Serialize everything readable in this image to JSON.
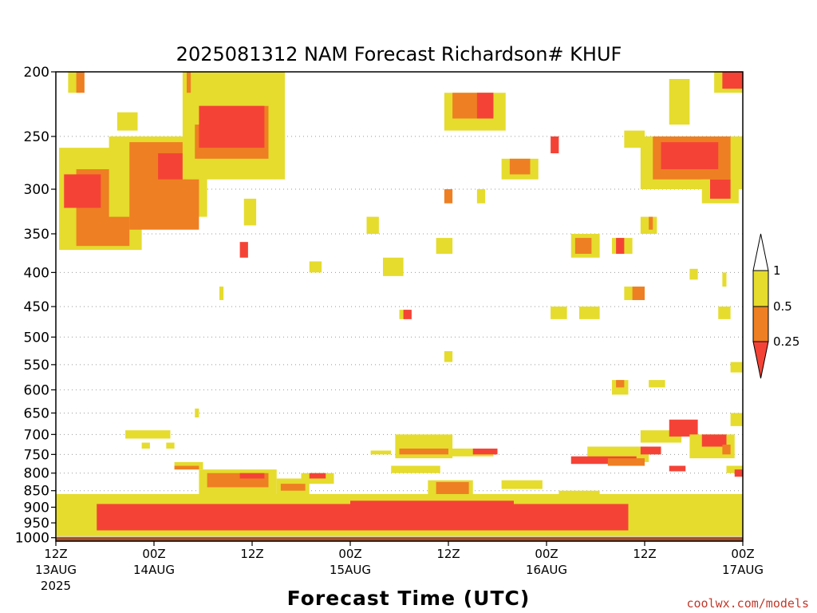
{
  "chart_data": {
    "type": "heatmap",
    "title": "2025081312 NAM Forecast Richardson# KHUF",
    "xlabel": "Forecast Time (UTC)",
    "ylabel": "",
    "y_scale": "log",
    "ylim": [
      1000,
      200
    ],
    "xlim": [
      0,
      84
    ],
    "x_unit": "forecast hours",
    "y_ticks": [
      200,
      250,
      300,
      350,
      400,
      450,
      500,
      550,
      600,
      650,
      700,
      750,
      800,
      850,
      900,
      950,
      1000
    ],
    "x_ticks": [
      {
        "hour": 0,
        "time": "12Z",
        "date": "13AUG",
        "year": "2025"
      },
      {
        "hour": 12,
        "time": "00Z",
        "date": "14AUG",
        "year": ""
      },
      {
        "hour": 24,
        "time": "12Z",
        "date": "",
        "year": ""
      },
      {
        "hour": 36,
        "time": "00Z",
        "date": "15AUG",
        "year": ""
      },
      {
        "hour": 48,
        "time": "12Z",
        "date": "",
        "year": ""
      },
      {
        "hour": 60,
        "time": "00Z",
        "date": "16AUG",
        "year": ""
      },
      {
        "hour": 72,
        "time": "12Z",
        "date": "",
        "year": ""
      },
      {
        "hour": 84,
        "time": "00Z",
        "date": "17AUG",
        "year": ""
      }
    ],
    "colorbar": {
      "levels": [
        "1",
        "0.5",
        "0.25"
      ],
      "colors": {
        "below_0.25": "#f44336",
        "0.25-0.5": "#ee7f22",
        "0.5-1": "#e5dc2e",
        "above_1": "#ffffff"
      }
    },
    "ground_color": "#a0522d",
    "grid": "dotted at pressure ticks",
    "regions": [
      {
        "level": "0.5-1",
        "x": [
          0.4,
          10.5
        ],
        "p": [
          260,
          370
        ]
      },
      {
        "level": "0.25-0.5",
        "x": [
          2.5,
          9.0
        ],
        "p": [
          280,
          365
        ]
      },
      {
        "level": "below_0.25",
        "x": [
          1.0,
          5.5
        ],
        "p": [
          285,
          320
        ]
      },
      {
        "level": "0.5-1",
        "x": [
          6.5,
          18.5
        ],
        "p": [
          250,
          330
        ]
      },
      {
        "level": "0.25-0.5",
        "x": [
          9.0,
          17.5
        ],
        "p": [
          255,
          345
        ]
      },
      {
        "level": "below_0.25",
        "x": [
          12.5,
          16.0
        ],
        "p": [
          265,
          290
        ]
      },
      {
        "level": "0.5-1",
        "x": [
          15.5,
          28.0
        ],
        "p": [
          200,
          290
        ]
      },
      {
        "level": "0.25-0.5",
        "x": [
          17.0,
          26.0
        ],
        "p": [
          225,
          270
        ]
      },
      {
        "level": "below_0.25",
        "x": [
          17.5,
          25.5
        ],
        "p": [
          225,
          260
        ]
      },
      {
        "level": "0.5-1",
        "x": [
          1.5,
          3.0
        ],
        "p": [
          200,
          215
        ]
      },
      {
        "level": "0.25-0.5",
        "x": [
          2.5,
          3.5
        ],
        "p": [
          200,
          215
        ]
      },
      {
        "level": "0.5-1",
        "x": [
          16.0,
          17.5
        ],
        "p": [
          205,
          240
        ]
      },
      {
        "level": "0.25-0.5",
        "x": [
          16.0,
          16.5
        ],
        "p": [
          200,
          215
        ]
      },
      {
        "level": "0.5-1",
        "x": [
          23.0,
          24.5
        ],
        "p": [
          310,
          340
        ]
      },
      {
        "level": "below_0.25",
        "x": [
          22.5,
          23.5
        ],
        "p": [
          360,
          380
        ]
      },
      {
        "level": "0.5-1",
        "x": [
          7.5,
          10.0
        ],
        "p": [
          230,
          245
        ]
      },
      {
        "level": "0.5-1",
        "x": [
          31.0,
          32.5
        ],
        "p": [
          385,
          400
        ]
      },
      {
        "level": "0.5-1",
        "x": [
          20.0,
          20.5
        ],
        "p": [
          420,
          440
        ]
      },
      {
        "level": "0.5-1",
        "x": [
          38.0,
          39.5
        ],
        "p": [
          330,
          350
        ]
      },
      {
        "level": "0.5-1",
        "x": [
          40.0,
          42.5
        ],
        "p": [
          380,
          405
        ]
      },
      {
        "level": "0.5-1",
        "x": [
          42.0,
          43.0
        ],
        "p": [
          455,
          470
        ]
      },
      {
        "level": "below_0.25",
        "x": [
          42.5,
          43.5
        ],
        "p": [
          455,
          470
        ]
      },
      {
        "level": "0.5-1",
        "x": [
          46.5,
          48.5
        ],
        "p": [
          355,
          375
        ]
      },
      {
        "level": "0.5-1",
        "x": [
          47.5,
          55.0
        ],
        "p": [
          215,
          245
        ]
      },
      {
        "level": "0.25-0.5",
        "x": [
          48.5,
          53.5
        ],
        "p": [
          215,
          235
        ]
      },
      {
        "level": "below_0.25",
        "x": [
          51.5,
          53.5
        ],
        "p": [
          215,
          235
        ]
      },
      {
        "level": "0.25-0.5",
        "x": [
          47.5,
          48.5
        ],
        "p": [
          300,
          315
        ]
      },
      {
        "level": "0.5-1",
        "x": [
          51.5,
          52.5
        ],
        "p": [
          300,
          315
        ]
      },
      {
        "level": "0.5-1",
        "x": [
          47.5,
          48.5
        ],
        "p": [
          525,
          545
        ]
      },
      {
        "level": "0.5-1",
        "x": [
          54.5,
          59.0
        ],
        "p": [
          270,
          290
        ]
      },
      {
        "level": "0.25-0.5",
        "x": [
          55.5,
          58.0
        ],
        "p": [
          270,
          285
        ]
      },
      {
        "level": "below_0.25",
        "x": [
          60.5,
          61.5
        ],
        "p": [
          250,
          265
        ]
      },
      {
        "level": "0.5-1",
        "x": [
          60.5,
          62.5
        ],
        "p": [
          450,
          470
        ]
      },
      {
        "level": "0.5-1",
        "x": [
          63.0,
          66.5
        ],
        "p": [
          350,
          380
        ]
      },
      {
        "level": "0.25-0.5",
        "x": [
          63.5,
          65.5
        ],
        "p": [
          355,
          375
        ]
      },
      {
        "level": "0.5-1",
        "x": [
          64.0,
          66.5
        ],
        "p": [
          450,
          470
        ]
      },
      {
        "level": "0.5-1",
        "x": [
          68.0,
          70.5
        ],
        "p": [
          355,
          375
        ]
      },
      {
        "level": "below_0.25",
        "x": [
          68.5,
          69.5
        ],
        "p": [
          355,
          375
        ]
      },
      {
        "level": "0.5-1",
        "x": [
          69.5,
          72.0
        ],
        "p": [
          420,
          440
        ]
      },
      {
        "level": "0.25-0.5",
        "x": [
          70.5,
          72.0
        ],
        "p": [
          420,
          440
        ]
      },
      {
        "level": "0.5-1",
        "x": [
          71.5,
          73.5
        ],
        "p": [
          330,
          350
        ]
      },
      {
        "level": "0.25-0.5",
        "x": [
          72.5,
          73.0
        ],
        "p": [
          330,
          345
        ]
      },
      {
        "level": "0.5-1",
        "x": [
          69.5,
          72.0
        ],
        "p": [
          245,
          260
        ]
      },
      {
        "level": "0.5-1",
        "x": [
          71.5,
          84.0
        ],
        "p": [
          250,
          300
        ]
      },
      {
        "level": "0.25-0.5",
        "x": [
          73.0,
          82.5
        ],
        "p": [
          250,
          290
        ]
      },
      {
        "level": "below_0.25",
        "x": [
          74.0,
          81.0
        ],
        "p": [
          255,
          280
        ]
      },
      {
        "level": "0.5-1",
        "x": [
          75.0,
          77.5
        ],
        "p": [
          205,
          240
        ]
      },
      {
        "level": "0.5-1",
        "x": [
          79.0,
          83.5
        ],
        "p": [
          290,
          315
        ]
      },
      {
        "level": "below_0.25",
        "x": [
          80.0,
          82.5
        ],
        "p": [
          290,
          310
        ]
      },
      {
        "level": "0.5-1",
        "x": [
          80.5,
          84.0
        ],
        "p": [
          200,
          215
        ]
      },
      {
        "level": "below_0.25",
        "x": [
          81.5,
          84.0
        ],
        "p": [
          200,
          212
        ]
      },
      {
        "level": "0.5-1",
        "x": [
          81.0,
          82.5
        ],
        "p": [
          450,
          470
        ]
      },
      {
        "level": "0.5-1",
        "x": [
          81.5,
          82.0
        ],
        "p": [
          400,
          420
        ]
      },
      {
        "level": "0.5-1",
        "x": [
          77.5,
          78.5
        ],
        "p": [
          395,
          410
        ]
      },
      {
        "level": "0.5-1",
        "x": [
          82.5,
          84.0
        ],
        "p": [
          545,
          565
        ]
      },
      {
        "level": "0.5-1",
        "x": [
          68.0,
          70.0
        ],
        "p": [
          580,
          610
        ]
      },
      {
        "level": "0.25-0.5",
        "x": [
          68.5,
          69.5
        ],
        "p": [
          580,
          595
        ]
      },
      {
        "level": "0.5-1",
        "x": [
          72.5,
          74.5
        ],
        "p": [
          580,
          595
        ]
      },
      {
        "level": "0.5-1",
        "x": [
          17.0,
          17.5
        ],
        "p": [
          640,
          660
        ]
      },
      {
        "level": "0.5-1",
        "x": [
          8.5,
          14.0
        ],
        "p": [
          690,
          710
        ]
      },
      {
        "level": "0.5-1",
        "x": [
          10.5,
          11.5
        ],
        "p": [
          720,
          735
        ]
      },
      {
        "level": "0.5-1",
        "x": [
          13.5,
          14.5
        ],
        "p": [
          720,
          735
        ]
      },
      {
        "level": "0.5-1",
        "x": [
          14.5,
          18.0
        ],
        "p": [
          770,
          790
        ]
      },
      {
        "level": "0.25-0.5",
        "x": [
          14.5,
          17.5
        ],
        "p": [
          780,
          790
        ]
      },
      {
        "level": "0.5-1",
        "x": [
          17.5,
          27.0
        ],
        "p": [
          790,
          870
        ]
      },
      {
        "level": "0.25-0.5",
        "x": [
          18.5,
          26.0
        ],
        "p": [
          800,
          840
        ]
      },
      {
        "level": "below_0.25",
        "x": [
          22.5,
          25.5
        ],
        "p": [
          800,
          815
        ]
      },
      {
        "level": "0.5-1",
        "x": [
          27.0,
          31.0
        ],
        "p": [
          815,
          860
        ]
      },
      {
        "level": "0.25-0.5",
        "x": [
          27.5,
          30.5
        ],
        "p": [
          830,
          850
        ]
      },
      {
        "level": "0.5-1",
        "x": [
          30.0,
          34.0
        ],
        "p": [
          800,
          830
        ]
      },
      {
        "level": "below_0.25",
        "x": [
          31.0,
          33.0
        ],
        "p": [
          800,
          815
        ]
      },
      {
        "level": "0.5-1",
        "x": [
          38.5,
          41.0
        ],
        "p": [
          740,
          750
        ]
      },
      {
        "level": "0.5-1",
        "x": [
          41.5,
          48.5
        ],
        "p": [
          700,
          760
        ]
      },
      {
        "level": "0.25-0.5",
        "x": [
          42.0,
          50.0
        ],
        "p": [
          735,
          750
        ]
      },
      {
        "level": "0.5-1",
        "x": [
          48.0,
          53.5
        ],
        "p": [
          735,
          755
        ]
      },
      {
        "level": "below_0.25",
        "x": [
          51.0,
          54.0
        ],
        "p": [
          735,
          750
        ]
      },
      {
        "level": "0.5-1",
        "x": [
          41.0,
          47.0
        ],
        "p": [
          780,
          800
        ]
      },
      {
        "level": "0.5-1",
        "x": [
          45.5,
          51.0
        ],
        "p": [
          820,
          880
        ]
      },
      {
        "level": "0.25-0.5",
        "x": [
          46.5,
          50.5
        ],
        "p": [
          825,
          860
        ]
      },
      {
        "level": "0.5-1",
        "x": [
          54.5,
          59.5
        ],
        "p": [
          820,
          845
        ]
      },
      {
        "level": "0.5-1",
        "x": [
          61.5,
          66.5
        ],
        "p": [
          850,
          870
        ]
      },
      {
        "level": "0.5-1",
        "x": [
          65.0,
          72.5
        ],
        "p": [
          730,
          770
        ]
      },
      {
        "level": "below_0.25",
        "x": [
          63.0,
          71.0
        ],
        "p": [
          755,
          775
        ]
      },
      {
        "level": "0.25-0.5",
        "x": [
          67.5,
          72.0
        ],
        "p": [
          760,
          780
        ]
      },
      {
        "level": "below_0.25",
        "x": [
          71.5,
          74.0
        ],
        "p": [
          730,
          750
        ]
      },
      {
        "level": "0.5-1",
        "x": [
          71.5,
          76.5
        ],
        "p": [
          690,
          720
        ]
      },
      {
        "level": "below_0.25",
        "x": [
          75.0,
          78.5
        ],
        "p": [
          665,
          705
        ]
      },
      {
        "level": "0.5-1",
        "x": [
          77.5,
          83.0
        ],
        "p": [
          700,
          760
        ]
      },
      {
        "level": "below_0.25",
        "x": [
          79.0,
          82.0
        ],
        "p": [
          700,
          730
        ]
      },
      {
        "level": "0.25-0.5",
        "x": [
          81.5,
          82.5
        ],
        "p": [
          725,
          750
        ]
      },
      {
        "level": "0.5-1",
        "x": [
          82.0,
          84.0
        ],
        "p": [
          780,
          800
        ]
      },
      {
        "level": "below_0.25",
        "x": [
          83.0,
          84.0
        ],
        "p": [
          790,
          810
        ]
      },
      {
        "level": "below_0.25",
        "x": [
          75.0,
          77.0
        ],
        "p": [
          780,
          795
        ]
      },
      {
        "level": "0.5-1",
        "x": [
          82.0,
          84.0
        ],
        "p": [
          870,
          885
        ]
      },
      {
        "level": "0.5-1",
        "x": [
          0.0,
          84.0
        ],
        "p": [
          860,
          995
        ]
      },
      {
        "level": "below_0.25",
        "x": [
          5.0,
          70.0
        ],
        "p": [
          890,
          975
        ]
      },
      {
        "level": "below_0.25",
        "x": [
          36.0,
          56.0
        ],
        "p": [
          880,
          960
        ]
      },
      {
        "level": "0.5-1",
        "x": [
          82.5,
          84.0
        ],
        "p": [
          650,
          680
        ]
      },
      {
        "level": "0.5-1",
        "x": [
          82.0,
          84.0
        ],
        "p": [
          950,
          990
        ]
      }
    ]
  },
  "credit": "coolwx.com/models"
}
